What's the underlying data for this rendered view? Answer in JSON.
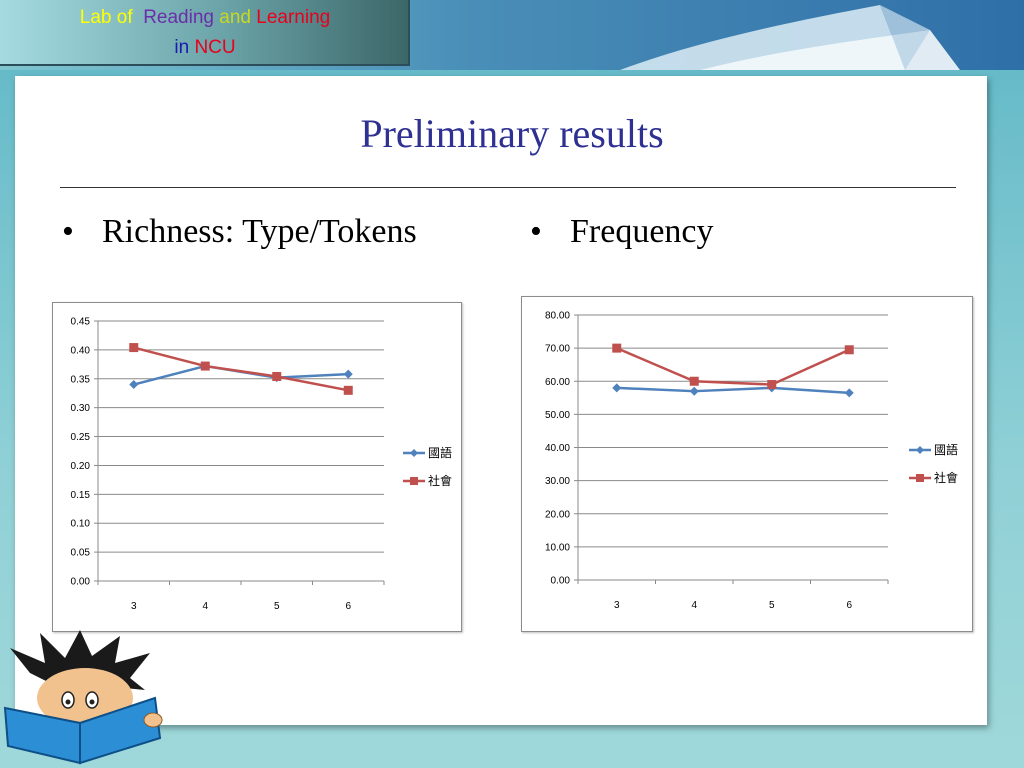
{
  "header": {
    "logo": {
      "word_lab": "Lab",
      "word_of": "of",
      "word_reading": "Reading",
      "word_and": "and",
      "word_learning": "Learning",
      "word_in": "in",
      "word_ncu": "NCU",
      "colors": {
        "lab": "#ffff00",
        "of": "#ffff00",
        "reading": "#6a2ea8",
        "and": "#c8d820",
        "learning": "#e8001c",
        "in": "#1a1ab0",
        "ncu": "#e8001c"
      }
    }
  },
  "slide": {
    "title": "Preliminary results",
    "bullets": [
      {
        "glyph": "•",
        "text": "Richness: Type/Tokens"
      },
      {
        "glyph": "•",
        "text": "Frequency"
      }
    ]
  },
  "chart_data": [
    {
      "type": "line",
      "categories": [
        "3",
        "4",
        "5",
        "6"
      ],
      "series": [
        {
          "name": "國語",
          "values": [
            0.34,
            0.372,
            0.352,
            0.358
          ],
          "color": "#4f81bd",
          "marker": "diamond"
        },
        {
          "name": "社會",
          "values": [
            0.404,
            0.372,
            0.354,
            0.33
          ],
          "color": "#c0504d",
          "marker": "square"
        }
      ],
      "ylim": [
        0,
        0.45
      ],
      "yticks": [
        "0.00",
        "0.05",
        "0.10",
        "0.15",
        "0.20",
        "0.25",
        "0.30",
        "0.35",
        "0.40",
        "0.45"
      ],
      "grid": true,
      "legend": "right"
    },
    {
      "type": "line",
      "categories": [
        "3",
        "4",
        "5",
        "6"
      ],
      "series": [
        {
          "name": "國語",
          "values": [
            58,
            57,
            58,
            56.5
          ],
          "color": "#4f81bd",
          "marker": "diamond"
        },
        {
          "name": "社會",
          "values": [
            70,
            60,
            59,
            69.5
          ],
          "color": "#c0504d",
          "marker": "square"
        }
      ],
      "ylim": [
        0,
        80
      ],
      "yticks": [
        "0.00",
        "10.00",
        "20.00",
        "30.00",
        "40.00",
        "50.00",
        "60.00",
        "70.00",
        "80.00"
      ],
      "grid": true,
      "legend": "right"
    }
  ]
}
